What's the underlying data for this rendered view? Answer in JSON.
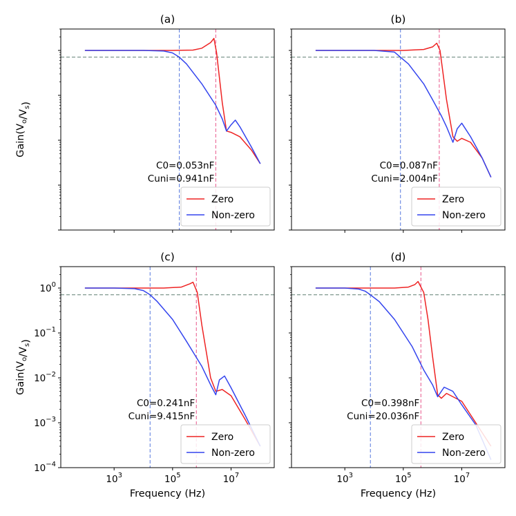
{
  "chart_data": [
    {
      "type": "line",
      "panel_key": "a",
      "title": "(a)",
      "xlabel": "",
      "ylabel": "Gain(V_o/V_s)",
      "xscale": "log",
      "yscale": "log",
      "xlim": [
        15,
        300000000
      ],
      "ylim": [
        0.0001,
        3
      ],
      "x_ticks": [
        3,
        5,
        7
      ],
      "y_ticks": [
        -4,
        -3,
        -2,
        -1,
        0
      ],
      "y_tick_labels": [],
      "x_tick_labels": [],
      "hline": 0.707,
      "vlines": [
        {
          "x": 170000,
          "color": "#5577dd"
        },
        {
          "x": 3000000,
          "color": "#e8558a"
        }
      ],
      "annotation": [
        "C0=0.053nF",
        "Cuni=0.941nF"
      ],
      "legend": {
        "position": "lower-right",
        "entries": [
          "Zero",
          "Non-zero"
        ]
      },
      "series": [
        {
          "name": "Zero",
          "color": "#ee2222",
          "x": [
            100,
            1000,
            10000,
            100000,
            500000,
            1000000,
            2000000,
            2600000,
            3200000,
            5000000,
            7000000,
            10000000,
            20000000,
            50000000,
            100000000
          ],
          "y": [
            1.0,
            1.0,
            1.0,
            1.0,
            1.02,
            1.12,
            1.5,
            1.85,
            0.9,
            0.07,
            0.016,
            0.015,
            0.012,
            0.006,
            0.003
          ]
        },
        {
          "name": "Non-zero",
          "color": "#3344ee",
          "x": [
            100,
            1000,
            10000,
            50000,
            100000,
            170000,
            300000,
            1000000,
            3000000,
            5000000,
            7000000,
            10000000,
            14000000,
            20000000,
            50000000,
            100000000
          ],
          "y": [
            1.0,
            1.0,
            1.0,
            0.97,
            0.88,
            0.707,
            0.5,
            0.18,
            0.06,
            0.03,
            0.016,
            0.022,
            0.028,
            0.02,
            0.007,
            0.003
          ]
        }
      ]
    },
    {
      "type": "line",
      "panel_key": "b",
      "title": "(b)",
      "xlabel": "",
      "ylabel": "",
      "xscale": "log",
      "yscale": "log",
      "xlim": [
        15,
        300000000
      ],
      "ylim": [
        0.0001,
        3
      ],
      "x_ticks": [
        3,
        5,
        7
      ],
      "y_ticks": [
        -4,
        -3,
        -2,
        -1,
        0
      ],
      "y_tick_labels": [],
      "x_tick_labels": [],
      "hline": 0.707,
      "vlines": [
        {
          "x": 80000,
          "color": "#5577dd"
        },
        {
          "x": 1700000,
          "color": "#e8558a"
        }
      ],
      "annotation": [
        "C0=0.087nF",
        "Cuni=2.004nF"
      ],
      "legend": {
        "position": "lower-right",
        "entries": [
          "Zero",
          "Non-zero"
        ]
      },
      "series": [
        {
          "name": "Zero",
          "color": "#ee2222",
          "x": [
            100,
            1000,
            10000,
            100000,
            500000,
            1000000,
            1400000,
            1800000,
            3000000,
            5000000,
            7000000,
            10000000,
            20000000,
            50000000,
            100000000
          ],
          "y": [
            1.0,
            1.0,
            1.0,
            1.0,
            1.05,
            1.2,
            1.45,
            1.0,
            0.08,
            0.012,
            0.0095,
            0.011,
            0.009,
            0.004,
            0.0015
          ]
        },
        {
          "name": "Non-zero",
          "color": "#3344ee",
          "x": [
            100,
            1000,
            10000,
            50000,
            80000,
            150000,
            500000,
            1000000,
            2000000,
            3000000,
            5000000,
            7000000,
            10000000,
            20000000,
            50000000,
            100000000
          ],
          "y": [
            1.0,
            1.0,
            1.0,
            0.92,
            0.707,
            0.5,
            0.18,
            0.08,
            0.035,
            0.02,
            0.009,
            0.018,
            0.024,
            0.012,
            0.004,
            0.0015
          ]
        }
      ]
    },
    {
      "type": "line",
      "panel_key": "c",
      "title": "(c)",
      "xlabel": "Frequency (Hz)",
      "ylabel": "Gain(V_o/V_s)",
      "xscale": "log",
      "yscale": "log",
      "xlim": [
        15,
        300000000
      ],
      "ylim": [
        0.0001,
        3
      ],
      "x_ticks": [
        3,
        5,
        7
      ],
      "x_tick_labels": [
        "3",
        "5",
        "7"
      ],
      "y_ticks": [
        -4,
        -3,
        -2,
        -1,
        0
      ],
      "y_tick_labels": [
        "-4",
        "-3",
        "-2",
        "-1",
        "0"
      ],
      "hline": 0.707,
      "vlines": [
        {
          "x": 17000,
          "color": "#5577dd"
        },
        {
          "x": 650000,
          "color": "#e8558a"
        }
      ],
      "annotation": [
        "C0=0.241nF",
        "Cuni=9.415nF"
      ],
      "legend": {
        "position": "lower-right",
        "entries": [
          "Zero",
          "Non-zero"
        ]
      },
      "series": [
        {
          "name": "Zero",
          "color": "#ee2222",
          "x": [
            100,
            1000,
            10000,
            50000,
            200000,
            400000,
            500000,
            700000,
            1000000,
            2000000,
            3000000,
            5000000,
            10000000,
            30000000,
            100000000
          ],
          "y": [
            1.0,
            1.0,
            1.0,
            1.0,
            1.05,
            1.25,
            1.35,
            0.8,
            0.15,
            0.01,
            0.005,
            0.0055,
            0.004,
            0.0012,
            0.0003
          ]
        },
        {
          "name": "Non-zero",
          "color": "#3344ee",
          "x": [
            100,
            1000,
            5000,
            10000,
            17000,
            30000,
            100000,
            300000,
            1000000,
            2000000,
            3000000,
            4000000,
            6000000,
            10000000,
            30000000,
            100000000
          ],
          "y": [
            1.0,
            1.0,
            0.97,
            0.88,
            0.707,
            0.5,
            0.2,
            0.065,
            0.018,
            0.007,
            0.0042,
            0.009,
            0.011,
            0.006,
            0.0015,
            0.0003
          ]
        }
      ]
    },
    {
      "type": "line",
      "panel_key": "d",
      "title": "(d)",
      "xlabel": "Frequency (Hz)",
      "ylabel": "",
      "xscale": "log",
      "yscale": "log",
      "xlim": [
        15,
        300000000
      ],
      "ylim": [
        0.0001,
        3
      ],
      "x_ticks": [
        3,
        5,
        7
      ],
      "x_tick_labels": [
        "3",
        "5",
        "7"
      ],
      "y_ticks": [
        -4,
        -3,
        -2,
        -1,
        0
      ],
      "y_tick_labels": [],
      "hline": 0.707,
      "vlines": [
        {
          "x": 7500,
          "color": "#5577dd"
        },
        {
          "x": 400000,
          "color": "#e8558a"
        }
      ],
      "annotation": [
        "C0=0.398nF",
        "Cuni=20.036nF"
      ],
      "legend": {
        "position": "lower-right",
        "entries": [
          "Zero",
          "Non-zero"
        ]
      },
      "series": [
        {
          "name": "Zero",
          "color": "#ee2222",
          "x": [
            100,
            1000,
            10000,
            50000,
            150000,
            250000,
            320000,
            500000,
            700000,
            1000000,
            1500000,
            2000000,
            3000000,
            10000000,
            30000000,
            100000000
          ],
          "y": [
            1.0,
            1.0,
            1.0,
            1.0,
            1.05,
            1.2,
            1.4,
            0.8,
            0.2,
            0.03,
            0.0042,
            0.0035,
            0.0045,
            0.003,
            0.001,
            0.0003
          ]
        },
        {
          "name": "Non-zero",
          "color": "#3344ee",
          "x": [
            100,
            1000,
            3000,
            5000,
            7500,
            15000,
            50000,
            200000,
            500000,
            1000000,
            1500000,
            2000000,
            2500000,
            5000000,
            10000000,
            30000000,
            100000000
          ],
          "y": [
            1.0,
            1.0,
            0.95,
            0.85,
            0.707,
            0.5,
            0.2,
            0.05,
            0.015,
            0.007,
            0.0038,
            0.005,
            0.0062,
            0.005,
            0.0025,
            0.0009,
            0.00015
          ]
        }
      ]
    }
  ]
}
